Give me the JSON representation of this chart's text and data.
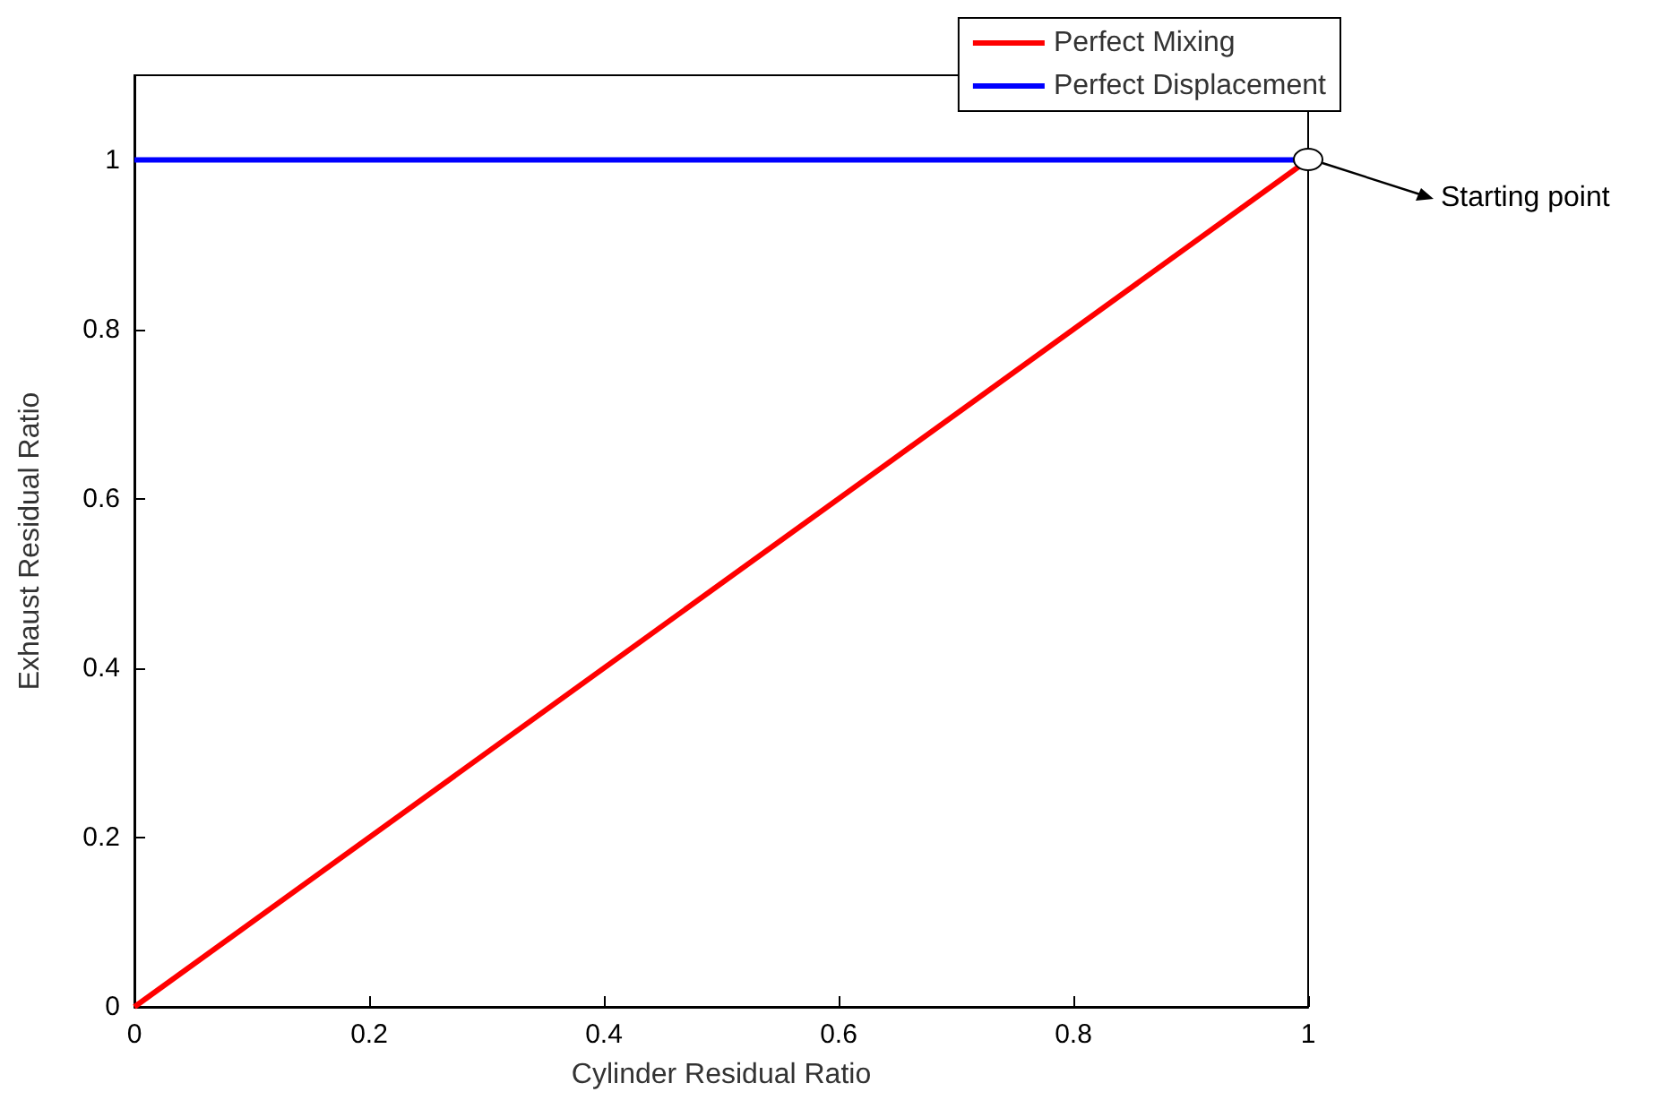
{
  "chart_data": {
    "type": "line",
    "xlabel": "Cylinder Residual Ratio",
    "ylabel": "Exhaust Residual Ratio",
    "x": [
      0,
      1
    ],
    "series": [
      {
        "name": "Perfect Mixing",
        "color": "#ff0000",
        "values": [
          0,
          1
        ]
      },
      {
        "name": "Perfect Displacement",
        "color": "#0000ff",
        "values": [
          1,
          1
        ]
      }
    ],
    "xlim": [
      0,
      1
    ],
    "xticks": [
      0,
      0.2,
      0.4,
      0.6,
      0.8,
      1
    ],
    "ylim": [
      0,
      1.1
    ],
    "yticks": [
      0,
      0.2,
      0.4,
      0.6,
      0.8,
      1
    ],
    "grid": false,
    "legend": "top right",
    "line_style": "solid",
    "annotations": [
      {
        "text": "Starting point",
        "x": 1,
        "y": 1
      }
    ]
  }
}
